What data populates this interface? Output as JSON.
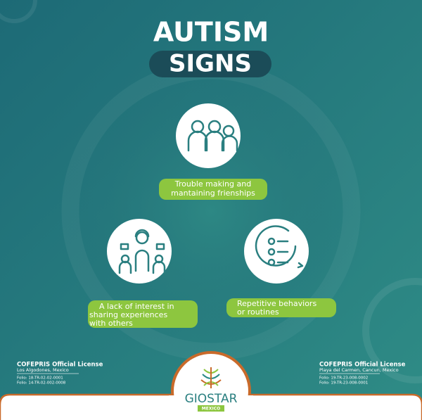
{
  "header": {
    "title_line1": "AUTISM",
    "title_line2": "SIGNS"
  },
  "signs": [
    {
      "lines": [
        "Trouble making  and",
        "mantaining frienships"
      ]
    },
    {
      "lines": [
        "A lack of interest in",
        "sharing experiences",
        "with others"
      ]
    },
    {
      "lines": [
        "Repetitive behaviors",
        "or routines"
      ]
    }
  ],
  "footer": {
    "left": {
      "title": "COFEPRIS Official License",
      "location": "Los Algodones, Mexico",
      "folios": [
        "Folio: 18-TR-02-02-0001",
        "Folio: 14-TR-02-002-0008"
      ]
    },
    "right": {
      "title": "COFEPRIS Official License",
      "location": "Playa del Carmen, Cancun, Mexico",
      "folios": [
        "Folio: 19-TR-23-008-0002",
        "Folio: 19-TR-23-008-0001"
      ]
    },
    "logo": {
      "name": "GIOSTAR",
      "country": "MEXICO"
    }
  }
}
